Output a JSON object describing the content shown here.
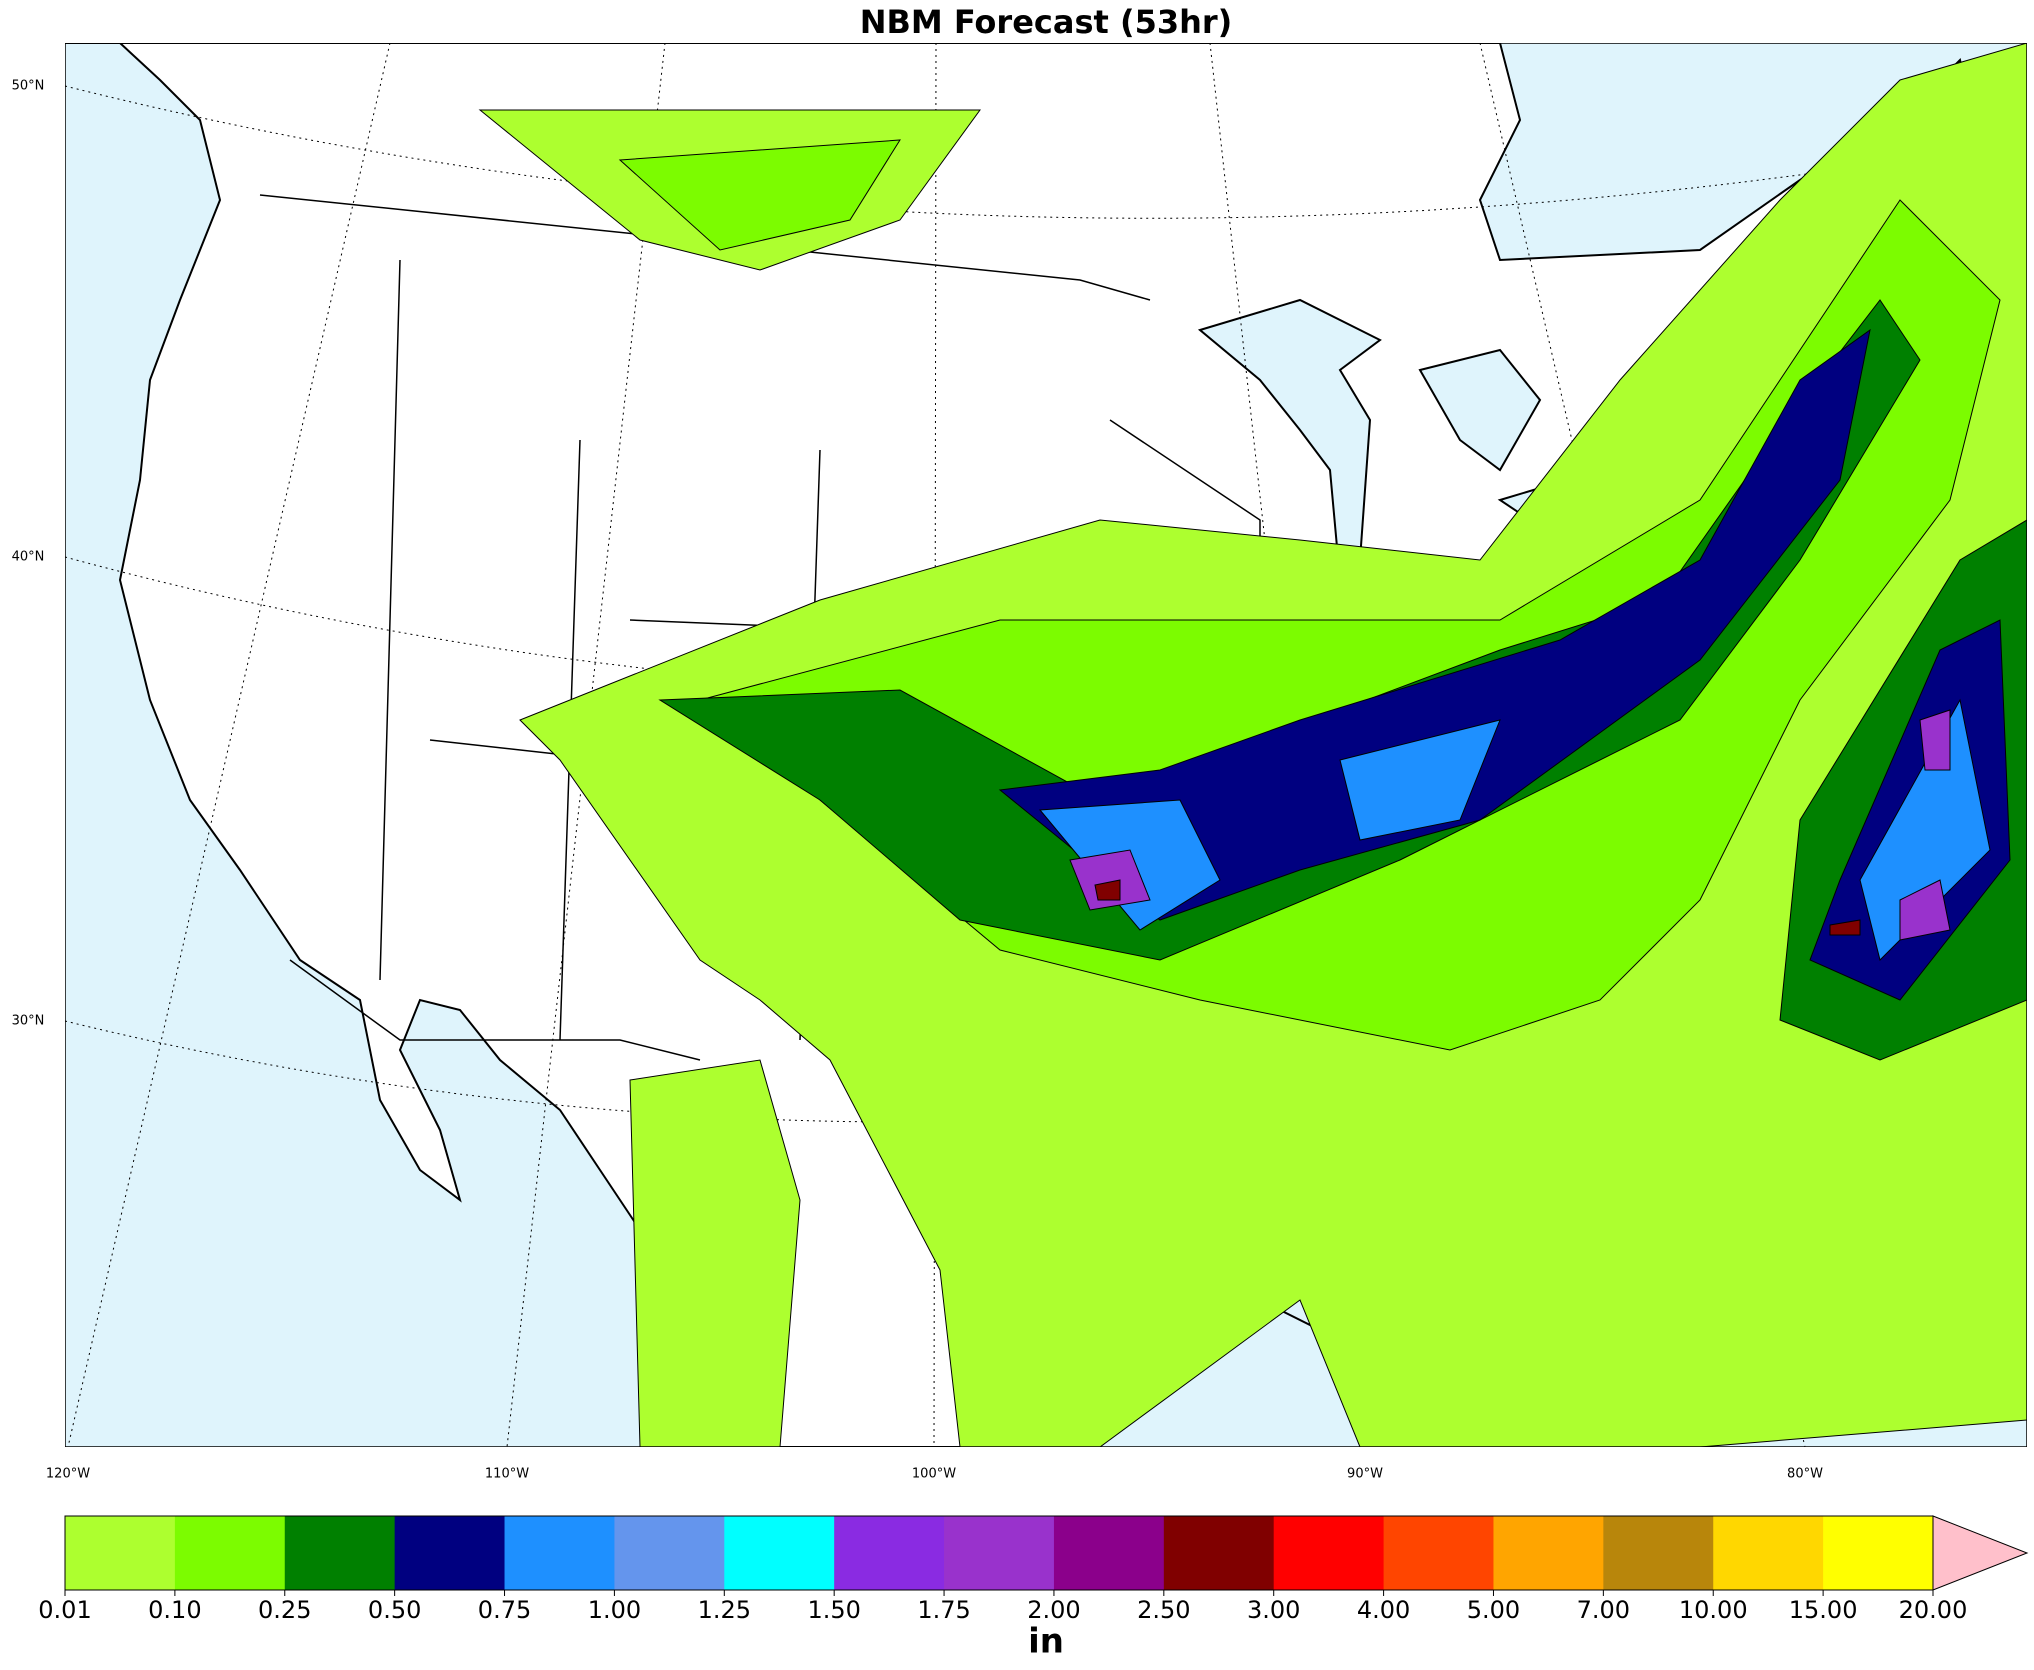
{
  "title": "NBM Forecast (53hr)",
  "map": {
    "lat_labels": [
      "50°N",
      "40°N",
      "30°N"
    ],
    "lon_labels": [
      "120°W",
      "110°W",
      "100°W",
      "90°W",
      "80°W"
    ]
  },
  "colorbar": {
    "ticks": [
      "0.01",
      "0.10",
      "0.25",
      "0.50",
      "0.75",
      "1.00",
      "1.25",
      "1.50",
      "1.75",
      "2.00",
      "2.50",
      "3.00",
      "4.00",
      "5.00",
      "7.00",
      "10.00",
      "15.00",
      "20.00"
    ],
    "colors": [
      "#adff2f",
      "#7cfc00",
      "#008000",
      "#000080",
      "#1e90ff",
      "#6495ed",
      "#00ffff",
      "#8a2be2",
      "#9932cc",
      "#8b008b",
      "#800000",
      "#ff0000",
      "#ff4500",
      "#ffa500",
      "#b8860b",
      "#ffd700",
      "#ffff00"
    ],
    "extend_color": "#ffc0cb",
    "unit": "in"
  }
}
